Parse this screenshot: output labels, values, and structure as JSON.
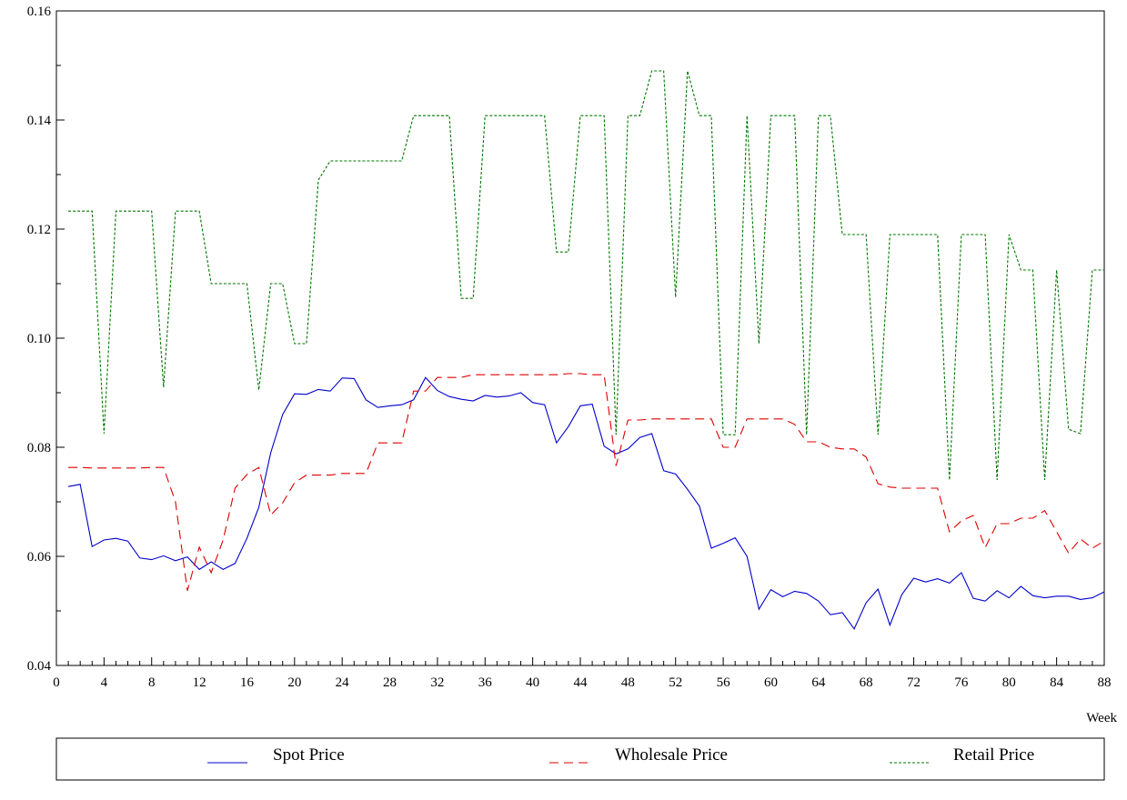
{
  "chart_data": {
    "type": "line",
    "title": "",
    "xlabel": "Week",
    "ylabel": "",
    "xlim": [
      0,
      88
    ],
    "ylim": [
      0.04,
      0.16
    ],
    "x_ticks": [
      0,
      4,
      8,
      12,
      16,
      20,
      24,
      28,
      32,
      36,
      40,
      44,
      48,
      52,
      56,
      60,
      64,
      68,
      72,
      76,
      80,
      84,
      88
    ],
    "x_tick_labels": [
      "0",
      "4",
      "8",
      "12",
      "16",
      "20",
      "24",
      "28",
      "32",
      "36",
      "40",
      "44",
      "48",
      "52",
      "56",
      "60",
      "64",
      "68",
      "72",
      "76",
      "80",
      "84",
      "88"
    ],
    "y_ticks": [
      0.04,
      0.06,
      0.08,
      0.1,
      0.12,
      0.14,
      0.16
    ],
    "y_tick_labels": [
      "0.04",
      "0.06",
      "0.08",
      "0.10",
      "0.12",
      "0.14",
      "0.16"
    ],
    "grid": false,
    "legend_position": "bottom",
    "x": [
      1,
      2,
      3,
      4,
      5,
      6,
      7,
      8,
      9,
      10,
      11,
      12,
      13,
      14,
      15,
      16,
      17,
      18,
      19,
      20,
      21,
      22,
      23,
      24,
      25,
      26,
      27,
      28,
      29,
      30,
      31,
      32,
      33,
      34,
      35,
      36,
      37,
      38,
      39,
      40,
      41,
      42,
      43,
      44,
      45,
      46,
      47,
      48,
      49,
      50,
      51,
      52,
      53,
      54,
      55,
      56,
      57,
      58,
      59,
      60,
      61,
      62,
      63,
      64,
      65,
      66,
      67,
      68,
      69,
      70,
      71,
      72,
      73,
      74,
      75,
      76,
      77,
      78,
      79,
      80,
      81,
      82,
      83,
      84,
      85,
      86,
      87,
      88
    ],
    "series": [
      {
        "name": "Spot Price",
        "color": "#0000cc",
        "dash": "solid",
        "values": [
          0.0728,
          0.0732,
          0.0618,
          0.063,
          0.0633,
          0.0628,
          0.0597,
          0.0594,
          0.0601,
          0.0592,
          0.0599,
          0.0576,
          0.059,
          0.0576,
          0.0587,
          0.0633,
          0.069,
          0.079,
          0.086,
          0.0898,
          0.0897,
          0.0906,
          0.0903,
          0.0927,
          0.0926,
          0.0887,
          0.0873,
          0.0876,
          0.0878,
          0.0887,
          0.0928,
          0.0904,
          0.0893,
          0.0888,
          0.0885,
          0.0895,
          0.0892,
          0.0894,
          0.09,
          0.0882,
          0.0878,
          0.0808,
          0.0838,
          0.0876,
          0.0879,
          0.0802,
          0.0788,
          0.0797,
          0.0818,
          0.0825,
          0.0757,
          0.0751,
          0.0723,
          0.0692,
          0.0615,
          0.0624,
          0.0634,
          0.06,
          0.0503,
          0.0539,
          0.0526,
          0.0536,
          0.0532,
          0.0518,
          0.0493,
          0.0497,
          0.0467,
          0.0515,
          0.054,
          0.0474,
          0.053,
          0.056,
          0.0553,
          0.0559,
          0.0551,
          0.057,
          0.0523,
          0.0518,
          0.0537,
          0.0524,
          0.0545,
          0.0528,
          0.0524,
          0.0527,
          0.0527,
          0.0521,
          0.0524,
          0.0535
        ]
      },
      {
        "name": "Wholesale Price",
        "color": "#dd0000",
        "dash": "dashed",
        "values": [
          0.0763,
          0.0763,
          0.0762,
          0.0762,
          0.0762,
          0.0762,
          0.0762,
          0.0763,
          0.0763,
          0.07,
          0.0537,
          0.0617,
          0.057,
          0.063,
          0.0725,
          0.075,
          0.0763,
          0.0676,
          0.0698,
          0.0735,
          0.0749,
          0.0749,
          0.0749,
          0.0752,
          0.0752,
          0.0752,
          0.0808,
          0.0808,
          0.0808,
          0.0903,
          0.0903,
          0.0928,
          0.0928,
          0.0928,
          0.0933,
          0.0933,
          0.0933,
          0.0933,
          0.0933,
          0.0933,
          0.0933,
          0.0933,
          0.0935,
          0.0935,
          0.0933,
          0.0933,
          0.0766,
          0.085,
          0.085,
          0.0852,
          0.0852,
          0.0852,
          0.0852,
          0.0852,
          0.0852,
          0.08,
          0.08,
          0.0852,
          0.0852,
          0.0852,
          0.0852,
          0.0842,
          0.081,
          0.081,
          0.08,
          0.0797,
          0.0797,
          0.0782,
          0.0733,
          0.0727,
          0.0725,
          0.0725,
          0.0725,
          0.0725,
          0.0645,
          0.0665,
          0.0675,
          0.0616,
          0.066,
          0.066,
          0.067,
          0.067,
          0.0684,
          0.0645,
          0.0606,
          0.0632,
          0.0615,
          0.0628
        ]
      },
      {
        "name": "Retail Price",
        "color": "#007700",
        "dash": "dotted",
        "values": [
          0.1233,
          0.1233,
          0.1233,
          0.0825,
          0.1233,
          0.1233,
          0.1233,
          0.1233,
          0.091,
          0.1233,
          0.1233,
          0.1233,
          0.11,
          0.11,
          0.11,
          0.11,
          0.0905,
          0.11,
          0.11,
          0.099,
          0.099,
          0.129,
          0.1325,
          0.1325,
          0.1325,
          0.1325,
          0.1325,
          0.1325,
          0.1325,
          0.1408,
          0.1408,
          0.1408,
          0.1408,
          0.1073,
          0.1073,
          0.1408,
          0.1408,
          0.1408,
          0.1408,
          0.1408,
          0.1408,
          0.1158,
          0.1158,
          0.1408,
          0.1408,
          0.1408,
          0.0823,
          0.1408,
          0.1408,
          0.149,
          0.149,
          0.1075,
          0.149,
          0.1408,
          0.1408,
          0.0823,
          0.0823,
          0.1408,
          0.099,
          0.1408,
          0.1408,
          0.1408,
          0.0823,
          0.1408,
          0.1408,
          0.119,
          0.119,
          0.119,
          0.0823,
          0.119,
          0.119,
          0.119,
          0.119,
          0.119,
          0.074,
          0.119,
          0.119,
          0.119,
          0.074,
          0.119,
          0.1125,
          0.1125,
          0.074,
          0.1125,
          0.0833,
          0.0825,
          0.1125,
          0.1125
        ]
      }
    ]
  }
}
